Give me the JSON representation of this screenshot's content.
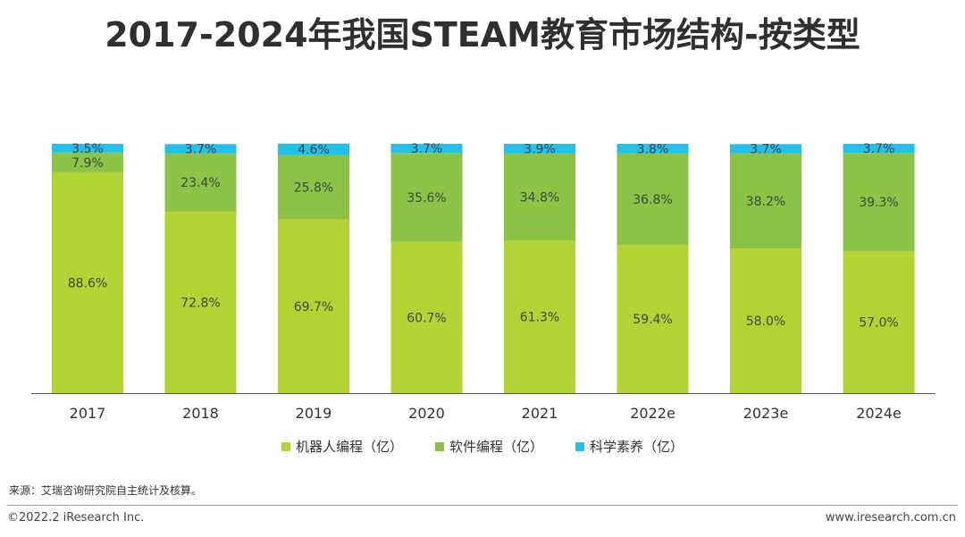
{
  "title": "2017-2024年我国STEAM教育市场结构-按类型",
  "chart_data": {
    "type": "bar",
    "stacked": true,
    "percent": true,
    "categories": [
      "2017",
      "2018",
      "2019",
      "2020",
      "2021",
      "2022e",
      "2023e",
      "2024e"
    ],
    "series": [
      {
        "name": "机器人编程（亿）",
        "color": "#b3d334",
        "values": [
          88.6,
          72.8,
          69.7,
          60.7,
          61.3,
          59.4,
          58.0,
          57.0
        ],
        "labels": [
          "88.6%",
          "72.8%",
          "69.7%",
          "60.7%",
          "61.3%",
          "59.4%",
          "58.0%",
          "57.0%"
        ]
      },
      {
        "name": "软件编程（亿）",
        "color": "#8ac345",
        "values": [
          7.9,
          23.4,
          25.8,
          35.6,
          34.8,
          36.8,
          38.2,
          39.3
        ],
        "labels": [
          "7.9%",
          "23.4%",
          "25.8%",
          "35.6%",
          "34.8%",
          "36.8%",
          "38.2%",
          "39.3%"
        ]
      },
      {
        "name": "科学素养（亿）",
        "color": "#21c1ec",
        "values": [
          3.5,
          3.7,
          4.6,
          3.7,
          3.9,
          3.8,
          3.7,
          3.7
        ],
        "labels": [
          "3.5%",
          "3.7%",
          "4.6%",
          "3.7%",
          "3.9%",
          "3.8%",
          "3.7%",
          "3.7%"
        ]
      }
    ],
    "ylim": [
      0,
      100
    ],
    "grid": false,
    "legend_position": "bottom"
  },
  "source": "来源：艾瑞咨询研究院自主统计及核算。",
  "footer": {
    "copyright": "©2022.2 iResearch Inc.",
    "website": "www.iresearch.com.cn"
  }
}
